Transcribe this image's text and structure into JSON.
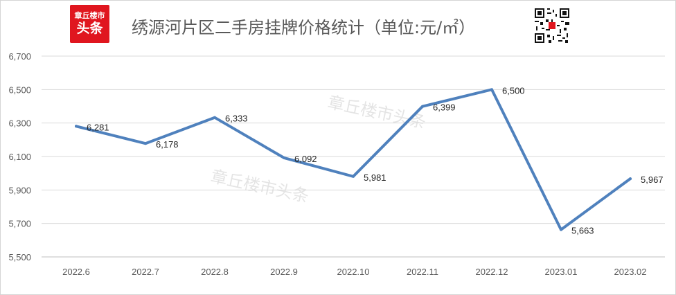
{
  "header": {
    "logo_line1": "章丘楼市",
    "logo_line2": "头条",
    "title": "绣源河片区二手房挂牌价格统计（单位:元/㎡）"
  },
  "watermark": [
    "章丘楼市头条",
    "章丘楼市头条"
  ],
  "icons": {
    "logo": "toutiao-logo-icon",
    "qr": "qr-code-icon"
  },
  "colors": {
    "line": "#4f81bd",
    "grid": "#d9d9d9",
    "logo_bg": "#e0161f"
  },
  "chart_data": {
    "type": "line",
    "title": "",
    "xlabel": "",
    "ylabel": "",
    "categories": [
      "2022.6",
      "2022.7",
      "2022.8",
      "2022.9",
      "2022.10",
      "2022.11",
      "2022.12",
      "2023.01",
      "2023.02"
    ],
    "series": [
      {
        "values": [
          6281,
          6178,
          6333,
          6092,
          5981,
          6399,
          6500,
          5663,
          5967
        ]
      }
    ],
    "value_labels": [
      "6,281",
      "6,178",
      "6,333",
      "6,092",
      "5,981",
      "6,399",
      "6,500",
      "5,663",
      "5,967"
    ],
    "yticks": [
      "5,500",
      "5,700",
      "5,900",
      "6,100",
      "6,300",
      "6,500",
      "6,700"
    ],
    "ylim": [
      5500,
      6700
    ],
    "grid": true,
    "legend": "none"
  }
}
